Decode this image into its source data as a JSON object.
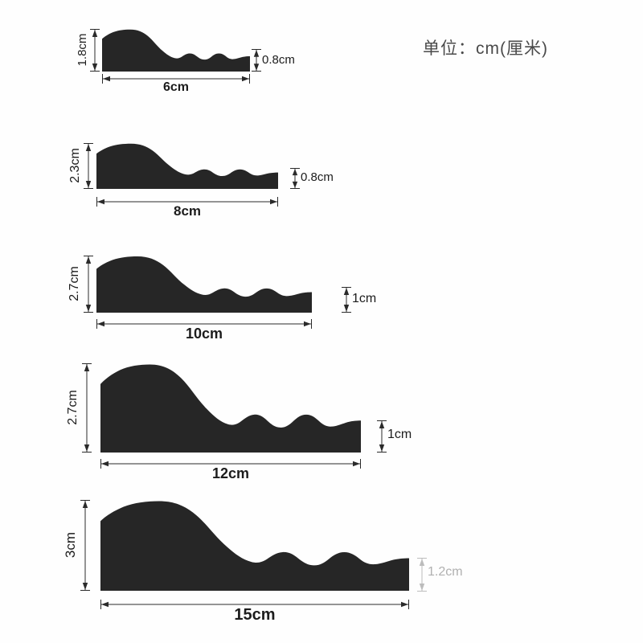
{
  "page": {
    "unit_label": "单位：cm(厘米)"
  },
  "figures": [
    {
      "name": "size-6cm",
      "height_label": "1.8cm",
      "width_label": "6cm",
      "thickness_label": "0.8cm"
    },
    {
      "name": "size-8cm",
      "height_label": "2.3cm",
      "width_label": "8cm",
      "thickness_label": "0.8cm"
    },
    {
      "name": "size-10cm",
      "height_label": "2.7cm",
      "width_label": "10cm",
      "thickness_label": "1cm"
    },
    {
      "name": "size-12cm",
      "height_label": "2.7cm",
      "width_label": "12cm",
      "thickness_label": "1cm"
    },
    {
      "name": "size-15cm",
      "height_label": "3cm",
      "width_label": "15cm",
      "thickness_label": "1.2cm"
    }
  ]
}
